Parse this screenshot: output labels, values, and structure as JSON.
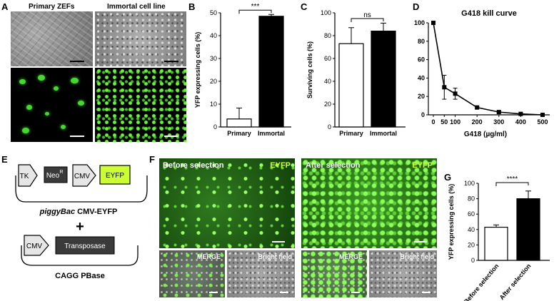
{
  "panels": {
    "A": {
      "letter": "A",
      "col1": "Primary ZEFs",
      "col2": "Immortal cell line"
    },
    "B": {
      "letter": "B"
    },
    "C": {
      "letter": "C"
    },
    "D": {
      "letter": "D"
    },
    "E": {
      "letter": "E",
      "tk": "TK",
      "neo": "Neo",
      "neo_sup": "R",
      "cmv1": "CMV",
      "eyfp": "EYFP",
      "plasmid1_prefix": "piggyBac",
      "plasmid1_suffix": " CMV-EYFP",
      "plus": "+",
      "cmv2": "CMV",
      "transposase": "Transposase",
      "plasmid2": "CAGG PBase",
      "colors": {
        "eyfp_fill": "#ccff33",
        "neo_fill": "#3a3a3a",
        "transposase_fill": "#3a3a3a"
      }
    },
    "F": {
      "letter": "F",
      "before": "Before selection",
      "after": "After selection",
      "eyfp1": "EYFP",
      "eyfp2": "EYFP",
      "merge1": "MERGE",
      "bright1": "Bright field",
      "merge2": "MERGE",
      "bright2": "Bright field",
      "colors": {
        "eyfp_label": "#ccff33"
      }
    },
    "G": {
      "letter": "G"
    }
  },
  "chart_data": [
    {
      "id": "B",
      "type": "bar",
      "categories": [
        "Primary",
        "Immortal"
      ],
      "values": [
        3.5,
        48.5
      ],
      "errors": [
        4.8,
        0.8
      ],
      "fills": [
        "#ffffff",
        "#000000"
      ],
      "ylabel": "YFP expressing cells (%)",
      "ylim": [
        0,
        50
      ],
      "yticks": [
        0,
        10,
        20,
        30,
        40,
        50
      ],
      "significance": "***"
    },
    {
      "id": "C",
      "type": "bar",
      "categories": [
        "Primary",
        "Immortal"
      ],
      "values": [
        73,
        84
      ],
      "errors": [
        14,
        7
      ],
      "fills": [
        "#ffffff",
        "#000000"
      ],
      "ylabel": "Surviving cells (%)",
      "ylim": [
        0,
        100
      ],
      "yticks": [
        0,
        20,
        40,
        60,
        80,
        100
      ],
      "significance": "ns"
    },
    {
      "id": "D",
      "type": "line",
      "title": "G418 kill curve",
      "xlabel": "G418 (µg/ml)",
      "x": [
        0,
        50,
        100,
        200,
        300,
        400,
        500
      ],
      "y": [
        100,
        30,
        23,
        8,
        3,
        1,
        0
      ],
      "errors": [
        0,
        13,
        6,
        1,
        1,
        0.5,
        0
      ],
      "xtick_labels": [
        "0",
        "50",
        "100",
        "200",
        "300",
        "400",
        "500"
      ],
      "yticks": [
        0,
        20,
        40,
        60,
        80,
        100
      ],
      "ylim": [
        0,
        100
      ]
    },
    {
      "id": "G",
      "type": "bar",
      "categories": [
        "Before selection",
        "After selection"
      ],
      "values": [
        43,
        80
      ],
      "errors": [
        3,
        10
      ],
      "fills": [
        "#ffffff",
        "#000000"
      ],
      "ylabel": "YFP expressing cells (%)",
      "ylim": [
        0,
        100
      ],
      "yticks": [
        0,
        20,
        40,
        60,
        80,
        100
      ],
      "significance": "****"
    }
  ]
}
